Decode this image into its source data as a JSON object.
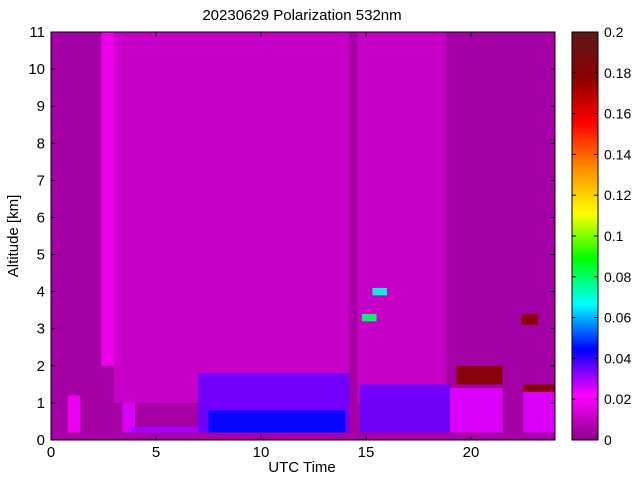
{
  "chart_data": {
    "type": "heatmap",
    "title": "20230629 Polarization 532nm",
    "xlabel": "UTC Time",
    "ylabel": "Altitude [km]",
    "xlim": [
      0,
      24
    ],
    "ylim": [
      0,
      11
    ],
    "x_ticks": [
      0,
      5,
      10,
      15,
      20
    ],
    "y_ticks": [
      0,
      1,
      2,
      3,
      4,
      5,
      6,
      7,
      8,
      9,
      10,
      11
    ],
    "colorbar": {
      "range": [
        0,
        0.2
      ],
      "ticks": [
        0,
        0.02,
        0.04,
        0.06,
        0.08,
        0.1,
        0.12,
        0.14,
        0.16,
        0.18,
        0.2
      ],
      "colormap": [
        "#8b008b",
        "#ff00ff",
        "#0000ff",
        "#00ffff",
        "#00ff00",
        "#ffff00",
        "#ff8c00",
        "#ff0000",
        "#8b0000",
        "#5c1a1a"
      ]
    },
    "background_value": 0.005,
    "regions": [
      {
        "x": [
          0.8,
          1.4
        ],
        "y": [
          0.2,
          1.2
        ],
        "value": 0.02
      },
      {
        "x": [
          2.4,
          3.4
        ],
        "y": [
          2.0,
          11.0
        ],
        "value": 0.02
      },
      {
        "x": [
          3.4,
          4.0
        ],
        "y": [
          0.2,
          1.3
        ],
        "value": 0.025
      },
      {
        "x": [
          3.8,
          7.0
        ],
        "y": [
          0.2,
          0.35
        ],
        "value": 0.03
      },
      {
        "x": [
          3.0,
          18.8
        ],
        "y": [
          1.0,
          11.0
        ],
        "value": 0.012
      },
      {
        "x": [
          7.0,
          14.3
        ],
        "y": [
          0.2,
          1.8
        ],
        "value": 0.035
      },
      {
        "x": [
          14.7,
          19.0
        ],
        "y": [
          0.2,
          1.5
        ],
        "value": 0.035
      },
      {
        "x": [
          7.5,
          14.0
        ],
        "y": [
          0.2,
          0.8
        ],
        "value": 0.045
      },
      {
        "x": [
          15.3,
          16.0
        ],
        "y": [
          3.9,
          4.1
        ],
        "value": 0.07
      },
      {
        "x": [
          14.8,
          15.5
        ],
        "y": [
          3.2,
          3.4
        ],
        "value": 0.08
      },
      {
        "x": [
          19.3,
          21.5
        ],
        "y": [
          1.5,
          2.0
        ],
        "value": 0.18
      },
      {
        "x": [
          19.0,
          21.5
        ],
        "y": [
          0.2,
          1.4
        ],
        "value": 0.025
      },
      {
        "x": [
          22.5,
          24.0
        ],
        "y": [
          1.3,
          1.5
        ],
        "value": 0.18
      },
      {
        "x": [
          22.5,
          24.0
        ],
        "y": [
          0.2,
          1.3
        ],
        "value": 0.025
      },
      {
        "x": [
          22.4,
          23.2
        ],
        "y": [
          3.1,
          3.4
        ],
        "value": 0.18
      }
    ],
    "gaps": [
      {
        "x": [
          14.2,
          14.6
        ],
        "y": [
          0,
          11
        ]
      }
    ]
  }
}
